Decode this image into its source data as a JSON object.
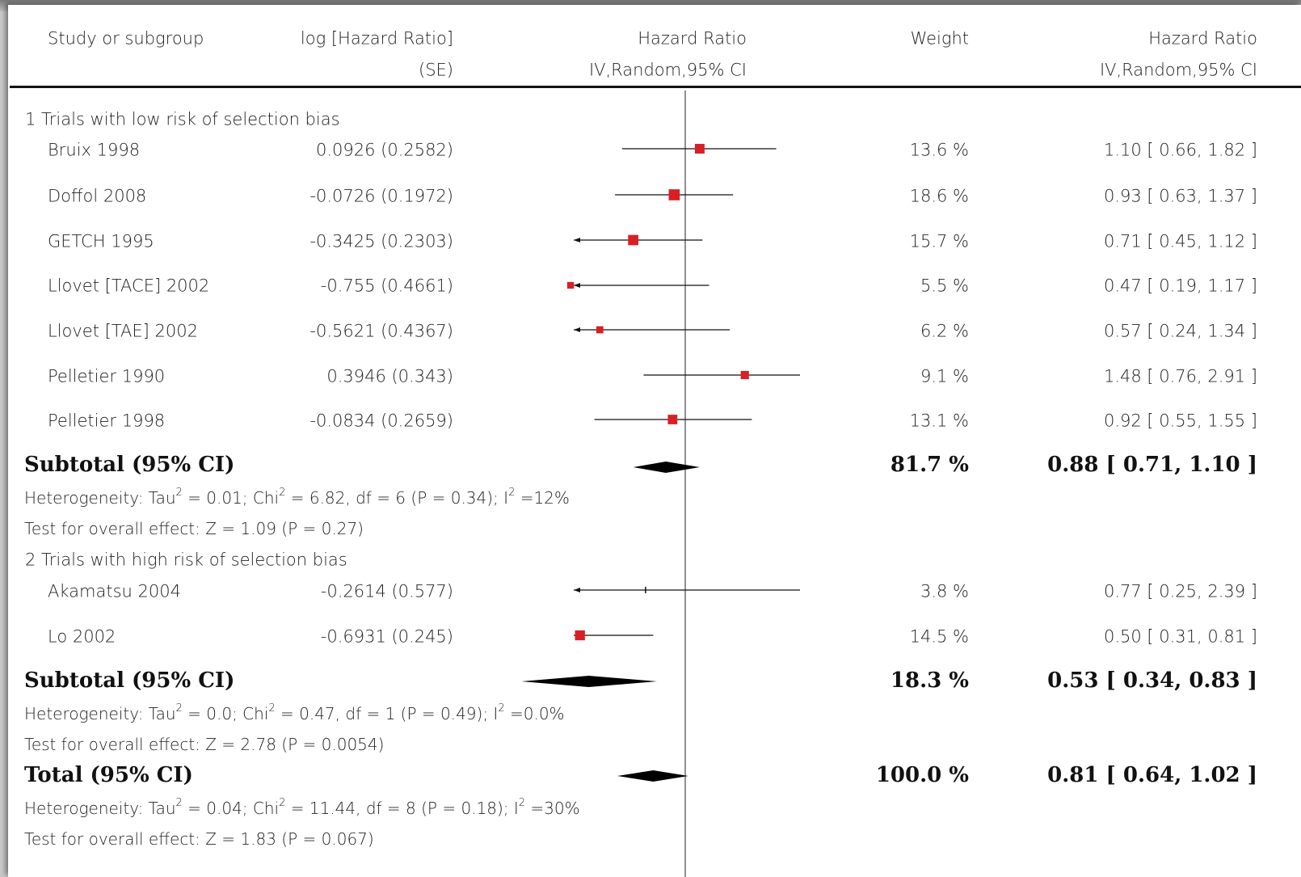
{
  "header": {
    "col_study": "Study or subgroup",
    "col_loghr_line1": "log [Hazard Ratio]",
    "col_loghr_line2": "(SE)",
    "col_hr_plot_line1": "Hazard Ratio",
    "col_hr_plot_line2": "IV,Random,95% CI",
    "col_weight": "Weight",
    "col_hr_text_line1": "Hazard Ratio",
    "col_hr_text_line2": "IV,Random,95% CI"
  },
  "groups": [
    {
      "title": "1 Trials with low risk of selection bias",
      "studies": [
        {
          "name": "Bruix 1998",
          "loghr_se": "0.0926 (0.2582)",
          "weight": "13.6 %",
          "hr_text": "1.10 [ 0.66, 1.82 ]"
        },
        {
          "name": "Doffol 2008",
          "loghr_se": "-0.0726 (0.1972)",
          "weight": "18.6 %",
          "hr_text": "0.93 [ 0.63, 1.37 ]"
        },
        {
          "name": "GETCH 1995",
          "loghr_se": "-0.3425 (0.2303)",
          "weight": "15.7 %",
          "hr_text": "0.71 [ 0.45, 1.12 ]"
        },
        {
          "name": "Llovet [TACE] 2002",
          "loghr_se": "-0.755 (0.4661)",
          "weight": "5.5 %",
          "hr_text": "0.47 [ 0.19, 1.17 ]"
        },
        {
          "name": "Llovet [TAE] 2002",
          "loghr_se": "-0.5621 (0.4367)",
          "weight": "6.2 %",
          "hr_text": "0.57 [ 0.24, 1.34 ]"
        },
        {
          "name": "Pelletier 1990",
          "loghr_se": "0.3946 (0.343)",
          "weight": "9.1 %",
          "hr_text": "1.48 [ 0.76, 2.91 ]"
        },
        {
          "name": "Pelletier 1998",
          "loghr_se": "-0.0834 (0.2659)",
          "weight": "13.1 %",
          "hr_text": "0.92 [ 0.55, 1.55 ]"
        }
      ],
      "subtotal": {
        "label": "Subtotal (95% CI)",
        "weight": "81.7 %",
        "hr_text": "0.88 [ 0.71, 1.10 ]"
      },
      "heterogeneity": {
        "prefix": "Heterogeneity: Tau",
        "a": " = 0.01; Chi",
        "b": " = 6.82, df = 6 (P = 0.34); I",
        "c": " =12%"
      },
      "overall": "Test for overall effect: Z = 1.09 (P = 0.27)"
    },
    {
      "title": "2 Trials with high risk of selection bias",
      "studies": [
        {
          "name": "Akamatsu 2004",
          "loghr_se": "-0.2614 (0.577)",
          "weight": "3.8 %",
          "hr_text": "0.77 [ 0.25, 2.39 ]"
        },
        {
          "name": "Lo 2002",
          "loghr_se": "-0.6931 (0.245)",
          "weight": "14.5 %",
          "hr_text": "0.50 [ 0.31, 0.81 ]"
        }
      ],
      "subtotal": {
        "label": "Subtotal (95% CI)",
        "weight": "18.3 %",
        "hr_text": "0.53 [ 0.34, 0.83 ]"
      },
      "heterogeneity": {
        "prefix": "Heterogeneity: Tau",
        "a": " = 0.0; Chi",
        "b": " = 0.47, df = 1 (P = 0.49); I",
        "c": " =0.0%"
      },
      "overall": "Test for overall effect: Z = 2.78 (P = 0.0054)"
    }
  ],
  "total": {
    "label": "Total (95% CI)",
    "weight": "100.0 %",
    "hr_text": "0.81 [ 0.64, 1.02 ]"
  },
  "total_heterogeneity": {
    "prefix": "Heterogeneity: Tau",
    "a": " = 0.04; Chi",
    "b": " = 11.44, df = 8 (P = 0.18); I",
    "c": " =30%"
  },
  "total_overall": "Test for overall effect: Z = 1.83 (P = 0.067)",
  "sup2": "2",
  "colors": {
    "square": "#d81f26",
    "line": "#111111",
    "diamond": "#000000"
  },
  "chart_data": {
    "type": "forest",
    "scale": "log",
    "null_line": 1,
    "x_domain_visible": [
      0.45,
      3.2
    ],
    "studies": [
      {
        "name": "Bruix 1998",
        "hr": 1.1,
        "lo": 0.66,
        "hi": 1.82,
        "weight": 13.6
      },
      {
        "name": "Doffol 2008",
        "hr": 0.93,
        "lo": 0.63,
        "hi": 1.37,
        "weight": 18.6
      },
      {
        "name": "GETCH 1995",
        "hr": 0.71,
        "lo": 0.45,
        "hi": 1.12,
        "weight": 15.7
      },
      {
        "name": "Llovet [TACE] 2002",
        "hr": 0.47,
        "lo": 0.19,
        "hi": 1.17,
        "weight": 5.5
      },
      {
        "name": "Llovet [TAE] 2002",
        "hr": 0.57,
        "lo": 0.24,
        "hi": 1.34,
        "weight": 6.2
      },
      {
        "name": "Pelletier 1990",
        "hr": 1.48,
        "lo": 0.76,
        "hi": 2.91,
        "weight": 9.1
      },
      {
        "name": "Pelletier 1998",
        "hr": 0.92,
        "lo": 0.55,
        "hi": 1.55,
        "weight": 13.1
      },
      {
        "name": "Akamatsu 2004",
        "hr": 0.77,
        "lo": 0.25,
        "hi": 2.39,
        "weight": 3.8
      },
      {
        "name": "Lo 2002",
        "hr": 0.5,
        "lo": 0.31,
        "hi": 0.81,
        "weight": 14.5
      }
    ],
    "pooled": [
      {
        "name": "Subtotal 1",
        "hr": 0.88,
        "lo": 0.71,
        "hi": 1.1,
        "weight": 81.7
      },
      {
        "name": "Subtotal 2",
        "hr": 0.53,
        "lo": 0.34,
        "hi": 0.83,
        "weight": 18.3
      },
      {
        "name": "Total",
        "hr": 0.81,
        "lo": 0.64,
        "hi": 1.02,
        "weight": 100.0
      }
    ]
  }
}
